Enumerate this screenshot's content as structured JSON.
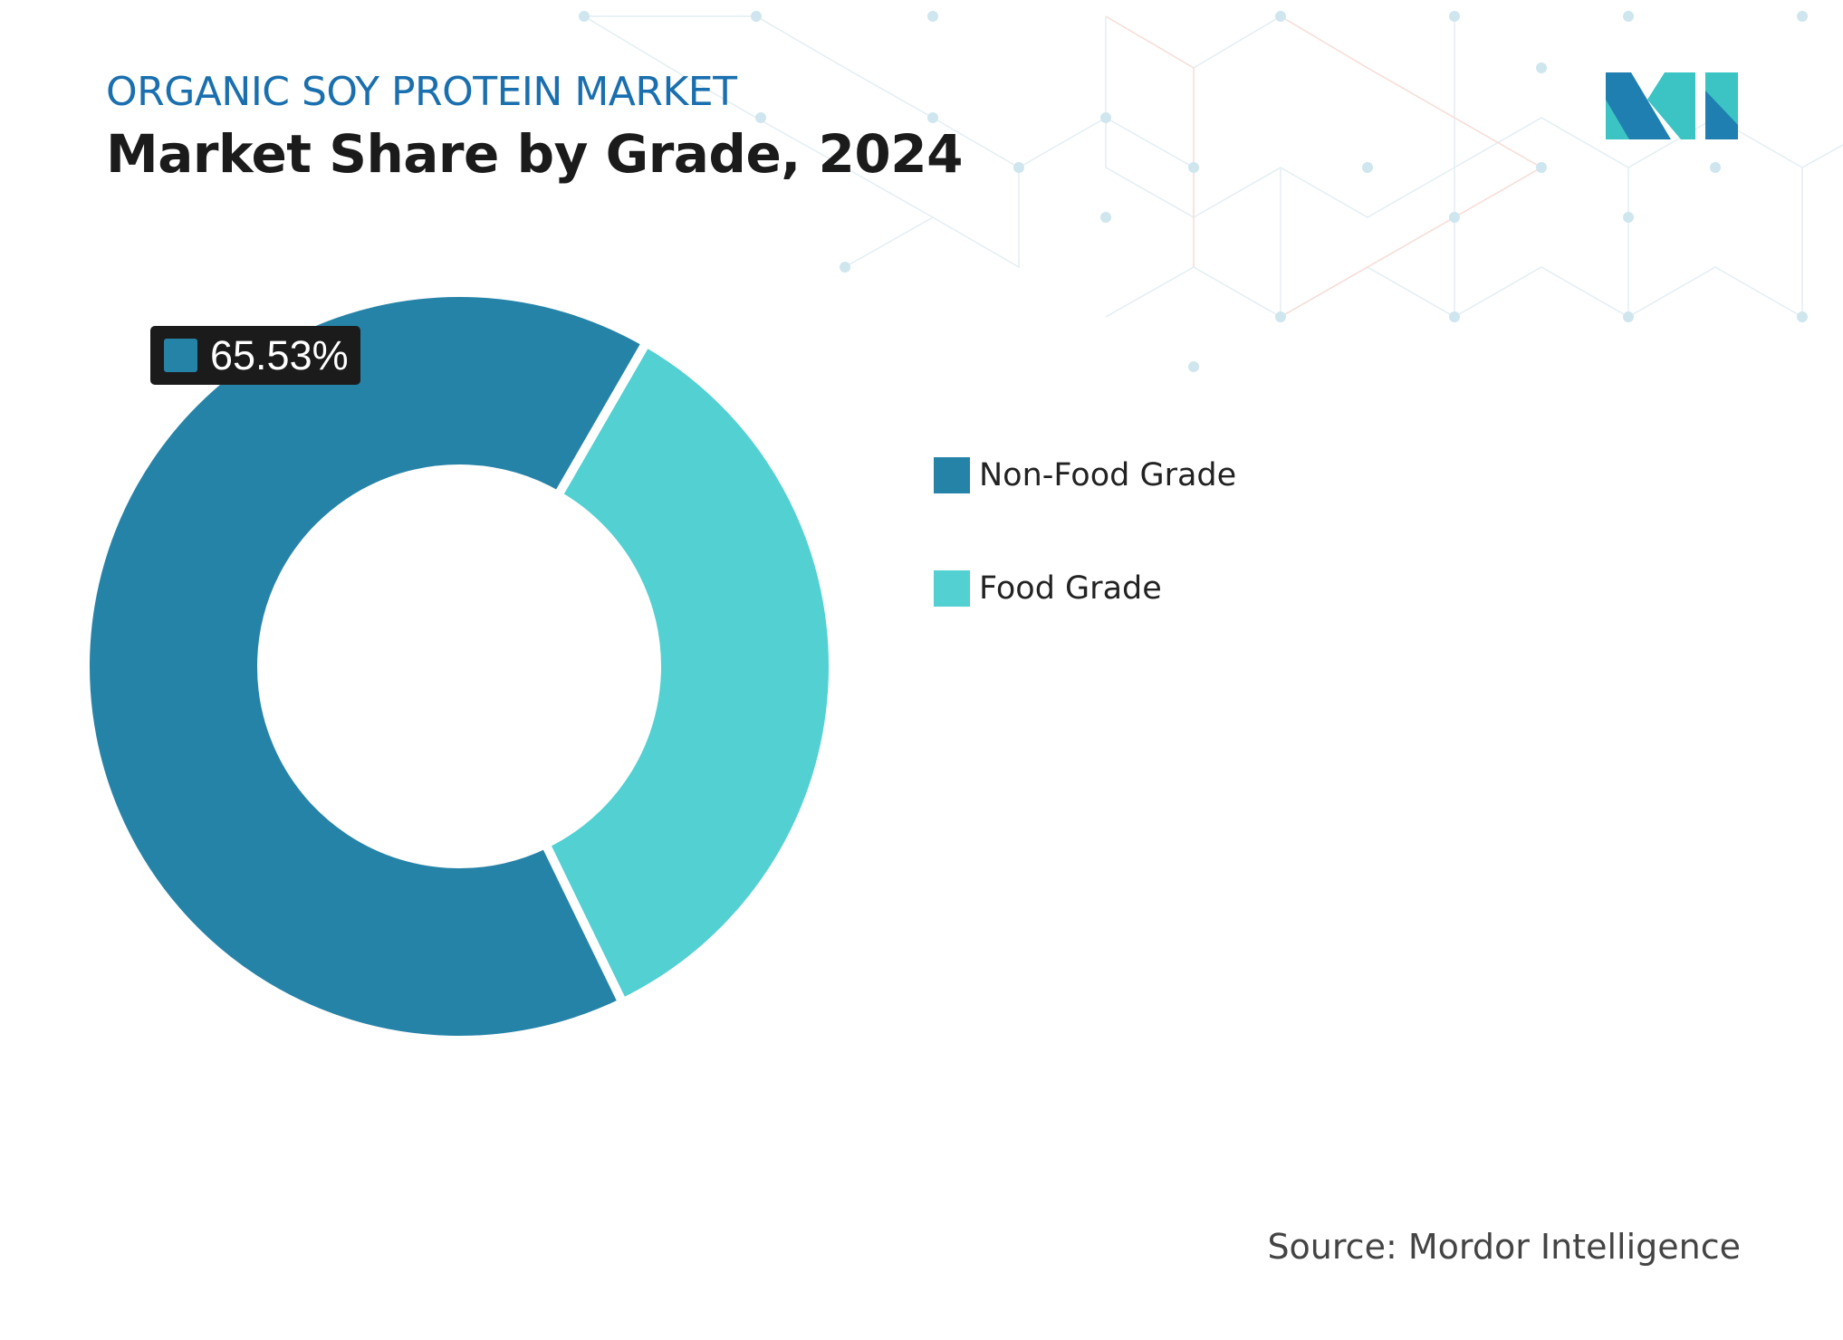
{
  "header": {
    "kicker": "ORGANIC SOY PROTEIN MARKET",
    "title": "Market Share by Grade, 2024"
  },
  "chart_data": {
    "type": "donut",
    "series": [
      {
        "name": "Non-Food Grade",
        "value": 65.53,
        "color": "#2683a8"
      },
      {
        "name": "Food Grade",
        "value": 34.47,
        "color": "#52d0d2"
      }
    ],
    "data_label": "65.53%",
    "legend_placement": "right"
  },
  "footer": {
    "source": "Source: Mordor Intelligence"
  },
  "logo": {
    "text": "MI",
    "colors": [
      "#1f7fb0",
      "#3cc4c4"
    ]
  }
}
